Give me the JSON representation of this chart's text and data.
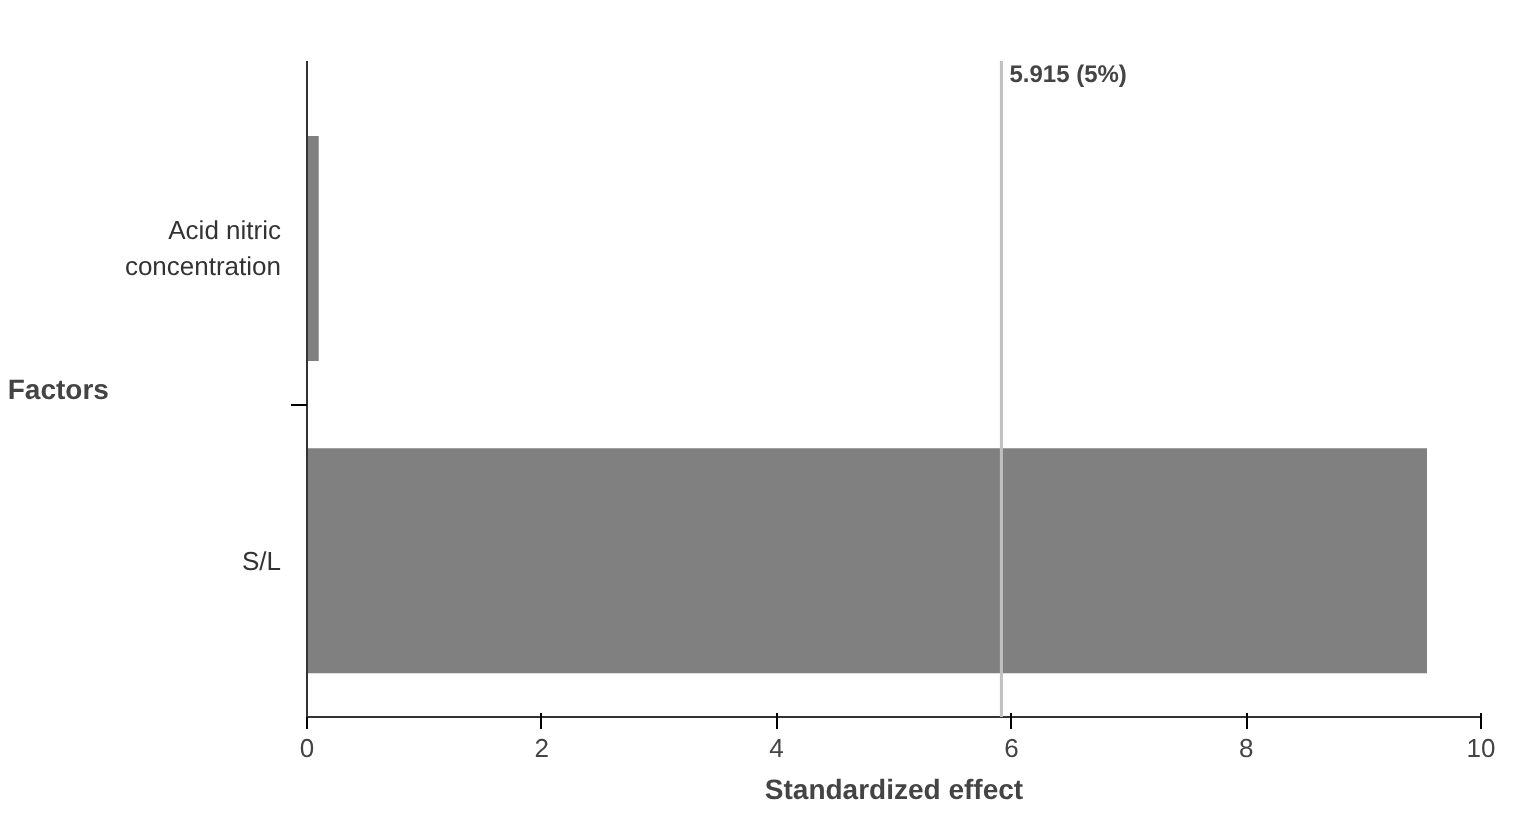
{
  "chart_data": {
    "type": "bar",
    "orientation": "horizontal",
    "categories": [
      "Acid nitric concentration",
      "S/L"
    ],
    "values": [
      0.1,
      9.54
    ],
    "color": "#808080",
    "xlabel": "Standardized effect",
    "ylabel": "Factors",
    "xlim": [
      0,
      10
    ],
    "xticks": [
      0,
      2,
      4,
      6,
      8,
      10
    ],
    "ref_lines": [
      {
        "axis": "x",
        "value": 5.915,
        "label": "5.915 (5%)",
        "color": "#c0c0c0"
      }
    ],
    "grid": false
  }
}
